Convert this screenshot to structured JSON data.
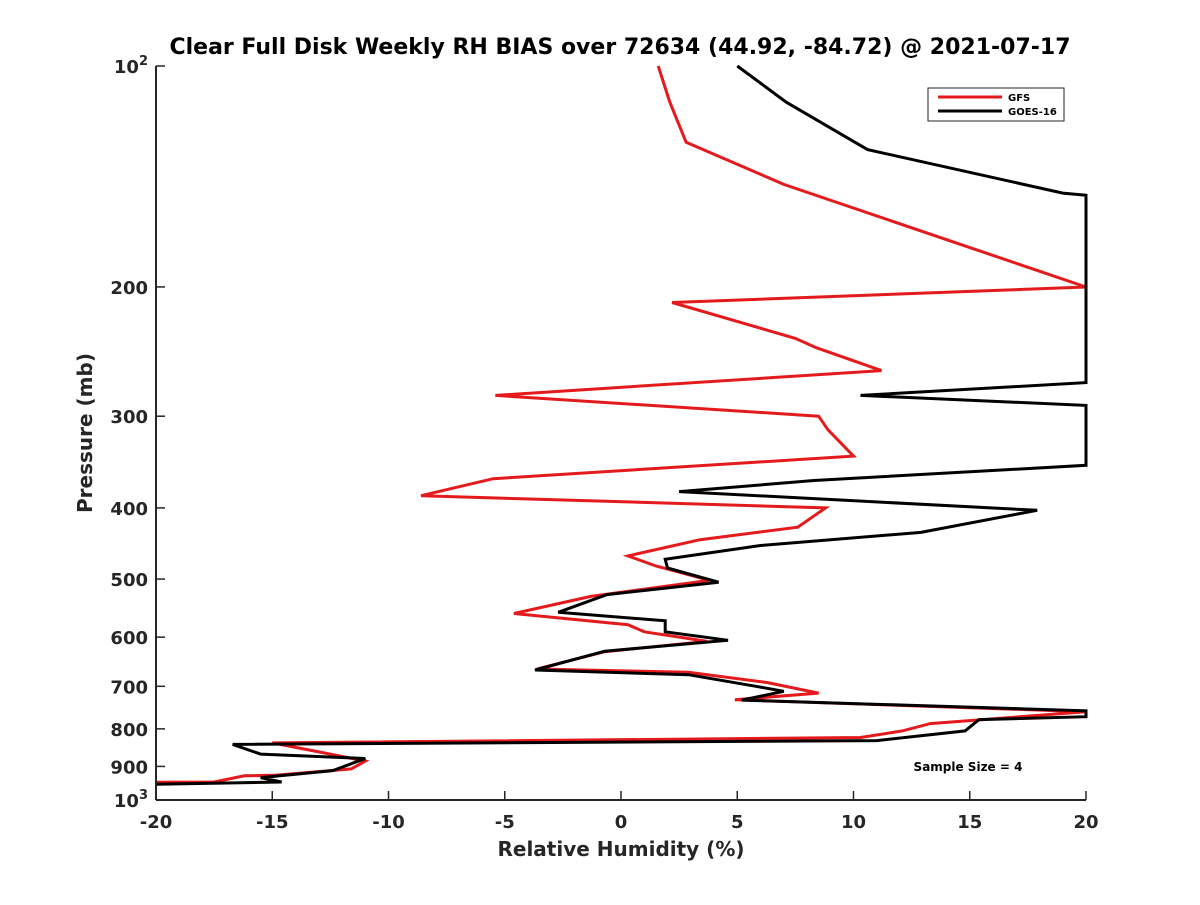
{
  "chart_data": {
    "type": "line",
    "title": "Clear Full Disk Weekly RH BIAS over 72634 (44.92, -84.72) @ 2021-07-17",
    "xlabel": "Relative Humidity (%)",
    "ylabel": "Pressure (mb)",
    "xlim": [
      -20,
      20
    ],
    "ylim": [
      100,
      1000
    ],
    "yscale": "log",
    "y_reversed": true,
    "grid": false,
    "legend_position": "top-right",
    "x_ticks": [
      {
        "value": -20,
        "label": "-20"
      },
      {
        "value": -15,
        "label": "-15"
      },
      {
        "value": -10,
        "label": "-10"
      },
      {
        "value": -5,
        "label": "-5"
      },
      {
        "value": 0,
        "label": "0"
      },
      {
        "value": 5,
        "label": "5"
      },
      {
        "value": 10,
        "label": "10"
      },
      {
        "value": 15,
        "label": "15"
      },
      {
        "value": 20,
        "label": "20"
      }
    ],
    "y_ticks": [
      {
        "value": 100,
        "base": "10",
        "exp": "2"
      },
      {
        "value": 200,
        "base": "200",
        "exp": ""
      },
      {
        "value": 300,
        "base": "300",
        "exp": ""
      },
      {
        "value": 400,
        "base": "400",
        "exp": ""
      },
      {
        "value": 500,
        "base": "500",
        "exp": ""
      },
      {
        "value": 600,
        "base": "600",
        "exp": ""
      },
      {
        "value": 700,
        "base": "700",
        "exp": ""
      },
      {
        "value": 800,
        "base": "800",
        "exp": ""
      },
      {
        "value": 900,
        "base": "900",
        "exp": ""
      },
      {
        "value": 1000,
        "base": "10",
        "exp": "3"
      }
    ],
    "annotation": "Sample Size = 4",
    "series": [
      {
        "name": "GFS",
        "color": "#e41a1c",
        "points": [
          [
            1.6,
            100
          ],
          [
            2.1,
            112
          ],
          [
            2.8,
            127
          ],
          [
            7.0,
            145
          ],
          [
            20,
            200
          ],
          [
            2.2,
            210
          ],
          [
            7.5,
            235
          ],
          [
            8.4,
            242
          ],
          [
            11.2,
            260
          ],
          [
            -5.4,
            281
          ],
          [
            8.5,
            300
          ],
          [
            8.9,
            313
          ],
          [
            10.0,
            340
          ],
          [
            -5.5,
            365
          ],
          [
            -8.6,
            385
          ],
          [
            8.8,
            400
          ],
          [
            7.6,
            425
          ],
          [
            3.4,
            442
          ],
          [
            0.3,
            465
          ],
          [
            1.5,
            480
          ],
          [
            3.8,
            502
          ],
          [
            -1.3,
            528
          ],
          [
            -4.6,
            557
          ],
          [
            0.3,
            577
          ],
          [
            1.0,
            590
          ],
          [
            3.7,
            608
          ],
          [
            -0.7,
            628
          ],
          [
            -3.6,
            663
          ],
          [
            2.9,
            670
          ],
          [
            6.3,
            692
          ],
          [
            8.5,
            715
          ],
          [
            4.9,
            730
          ],
          [
            20,
            758
          ],
          [
            13.3,
            787
          ],
          [
            12.1,
            805
          ],
          [
            10.3,
            822
          ],
          [
            -15.0,
            836
          ],
          [
            -13.0,
            860
          ],
          [
            -11.0,
            885
          ],
          [
            -11.6,
            907
          ],
          [
            -14.8,
            925
          ],
          [
            -16.2,
            927
          ],
          [
            -17.5,
            945
          ],
          [
            -20,
            946
          ]
        ]
      },
      {
        "name": "GOES-16",
        "color": "#000000",
        "points": [
          [
            5.0,
            100
          ],
          [
            7.1,
            112
          ],
          [
            10.6,
            130
          ],
          [
            19.0,
            149
          ],
          [
            20,
            150
          ],
          [
            20,
            270
          ],
          [
            10.3,
            281
          ],
          [
            20,
            290
          ],
          [
            20,
            350
          ],
          [
            8.3,
            367
          ],
          [
            2.5,
            380
          ],
          [
            17.9,
            403
          ],
          [
            12.9,
            432
          ],
          [
            6.0,
            450
          ],
          [
            1.9,
            470
          ],
          [
            2.0,
            483
          ],
          [
            4.2,
            505
          ],
          [
            -0.6,
            525
          ],
          [
            -2.7,
            555
          ],
          [
            1.9,
            570
          ],
          [
            1.9,
            590
          ],
          [
            4.6,
            606
          ],
          [
            -0.7,
            627
          ],
          [
            -3.7,
            665
          ],
          [
            2.9,
            675
          ],
          [
            5.8,
            700
          ],
          [
            7.0,
            711
          ],
          [
            5.2,
            731
          ],
          [
            20,
            756
          ],
          [
            20,
            770
          ],
          [
            15.4,
            777
          ],
          [
            14.8,
            805
          ],
          [
            11.0,
            830
          ],
          [
            -16.7,
            840
          ],
          [
            -15.5,
            866
          ],
          [
            -11.0,
            878
          ],
          [
            -12.4,
            912
          ],
          [
            -15.5,
            932
          ],
          [
            -14.6,
            945
          ],
          [
            -20,
            952
          ]
        ]
      }
    ]
  }
}
